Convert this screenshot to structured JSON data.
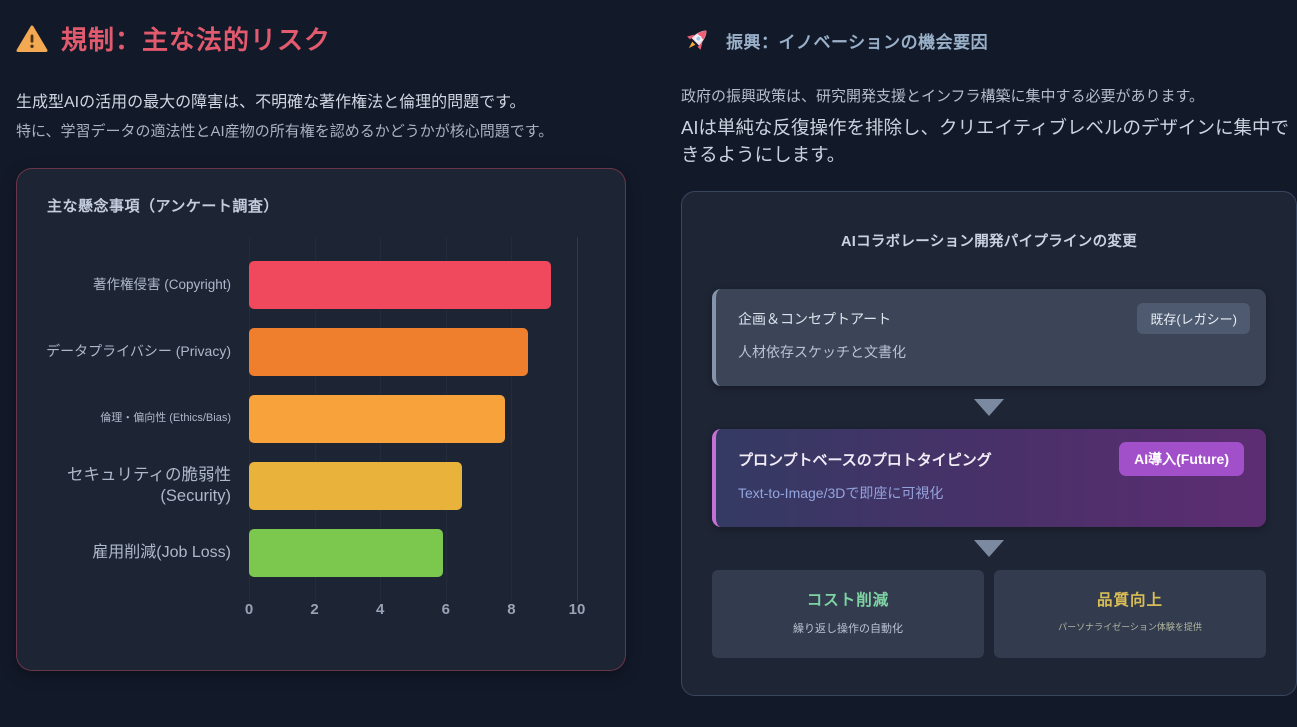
{
  "left_panel": {
    "heading": "規制：主な法的リスク",
    "accent_color": "#e25a6d",
    "intro_primary": "生成型AIの活用の最大の障害は、不明確な著作権法と倫理的問題です。",
    "intro_secondary": "特に、学習データの適法性とAI産物の所有権を認めるかどうかが核心問題です。"
  },
  "right_panel": {
    "heading": "振興：イノベーションの機会要因",
    "heading_color": "#99b0c8",
    "intro_primary": "政府の振興政策は、研究開発支援とインフラ構築に集中する必要があります。",
    "intro_secondary": "AIは単純な反復操作を排除し、クリエイティブレベルのデザインに集中できるようにします。"
  },
  "chart_data": {
    "type": "bar",
    "orientation": "horizontal",
    "title": "主な懸念事項（アンケート調査）",
    "categories": [
      "著作権侵害 (Copyright)",
      "データプライバシー (Privacy)",
      "倫理・偏向性 (Ethics/Bias)",
      "セキュリティの脆弱性 (Security)",
      "雇用削減(Job Loss)"
    ],
    "values": [
      9.2,
      8.5,
      7.8,
      6.5,
      5.9
    ],
    "colors": [
      "#f0485c",
      "#ef7f2d",
      "#f7a23b",
      "#e9b33b",
      "#7cc84f"
    ],
    "xlabel": "",
    "ylabel": "",
    "xlim": [
      0,
      10
    ],
    "x_ticks": [
      "0",
      "2",
      "4",
      "6",
      "8",
      "10"
    ],
    "grid": true,
    "legend": false
  },
  "pipeline": {
    "title": "AIコラボレーション開発パイプラインの変更",
    "stages": [
      {
        "title": "企画＆コンセプトアート",
        "subtitle": "人材依存スケッチと文書化",
        "badge": "既存(レガシー)",
        "badge_color": "#4e5a70"
      },
      {
        "title": "プロンプトベースのプロトタイピング",
        "subtitle": "Text-to-Image/3Dで即座に可視化",
        "badge": "AI導入(Future)",
        "badge_color": "#a24fca"
      }
    ],
    "outcomes": [
      {
        "title": "コスト削減",
        "subtitle": "繰り返し操作の自動化",
        "title_color": "#7fd3a3"
      },
      {
        "title": "品質向上",
        "subtitle": "パーソナライゼーション体験を提供",
        "title_color": "#d9bd55"
      }
    ]
  }
}
